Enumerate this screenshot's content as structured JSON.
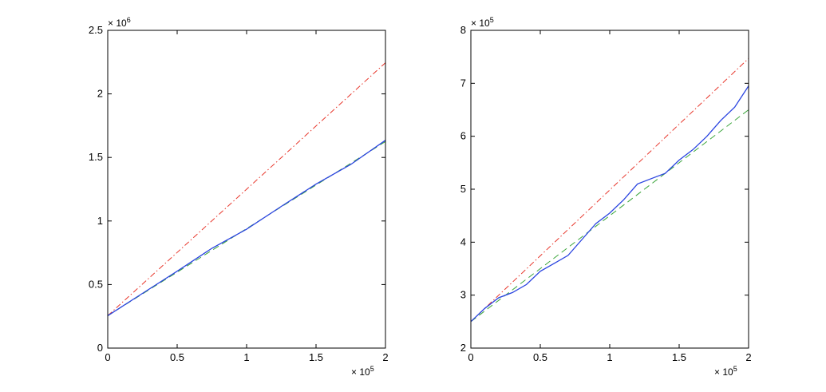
{
  "chart_data": [
    {
      "type": "line",
      "x_multiplier": {
        "base": "× 10",
        "exponent": "5"
      },
      "y_multiplier": {
        "base": "× 10",
        "exponent": "6"
      },
      "xlim": [
        0,
        2
      ],
      "ylim": [
        0,
        2.5
      ],
      "x_ticks": [
        "0",
        "0.5",
        "1",
        "1.5",
        "2"
      ],
      "y_ticks": [
        "0",
        "0.5",
        "1",
        "1.5",
        "2",
        "2.5"
      ],
      "series": [
        {
          "style": "dash-dot",
          "color": "#e8372c",
          "x": [
            0,
            2
          ],
          "y": [
            0.255,
            2.245
          ]
        },
        {
          "style": "dashed",
          "color": "#3aa53a",
          "x": [
            0,
            2
          ],
          "y": [
            0.255,
            1.625
          ]
        },
        {
          "style": "solid",
          "color": "#2a44e0",
          "x": [
            0,
            0.25,
            0.5,
            0.75,
            1.0,
            1.25,
            1.5,
            1.75,
            2.0
          ],
          "y": [
            0.255,
            0.43,
            0.605,
            0.785,
            0.935,
            1.115,
            1.29,
            1.445,
            1.635
          ]
        }
      ]
    },
    {
      "type": "line",
      "x_multiplier": {
        "base": "× 10",
        "exponent": "5"
      },
      "y_multiplier": {
        "base": "× 10",
        "exponent": "5"
      },
      "xlim": [
        0,
        2
      ],
      "ylim": [
        2,
        8
      ],
      "x_ticks": [
        "0",
        "0.5",
        "1",
        "1.5",
        "2"
      ],
      "y_ticks": [
        "2",
        "3",
        "4",
        "5",
        "6",
        "7",
        "8"
      ],
      "series": [
        {
          "style": "dash-dot",
          "color": "#e8372c",
          "x": [
            0,
            2
          ],
          "y": [
            2.5,
            7.47
          ]
        },
        {
          "style": "dashed",
          "color": "#3aa53a",
          "x": [
            0,
            2
          ],
          "y": [
            2.5,
            6.5
          ]
        },
        {
          "style": "solid",
          "color": "#2a44e0",
          "x": [
            0,
            0.1,
            0.2,
            0.3,
            0.4,
            0.5,
            0.6,
            0.7,
            0.8,
            0.9,
            1.0,
            1.1,
            1.2,
            1.3,
            1.4,
            1.5,
            1.6,
            1.7,
            1.8,
            1.9,
            2.0
          ],
          "y": [
            2.5,
            2.75,
            2.95,
            3.05,
            3.2,
            3.45,
            3.6,
            3.75,
            4.05,
            4.35,
            4.55,
            4.8,
            5.1,
            5.2,
            5.3,
            5.55,
            5.75,
            6.0,
            6.3,
            6.55,
            6.95
          ]
        }
      ]
    }
  ]
}
